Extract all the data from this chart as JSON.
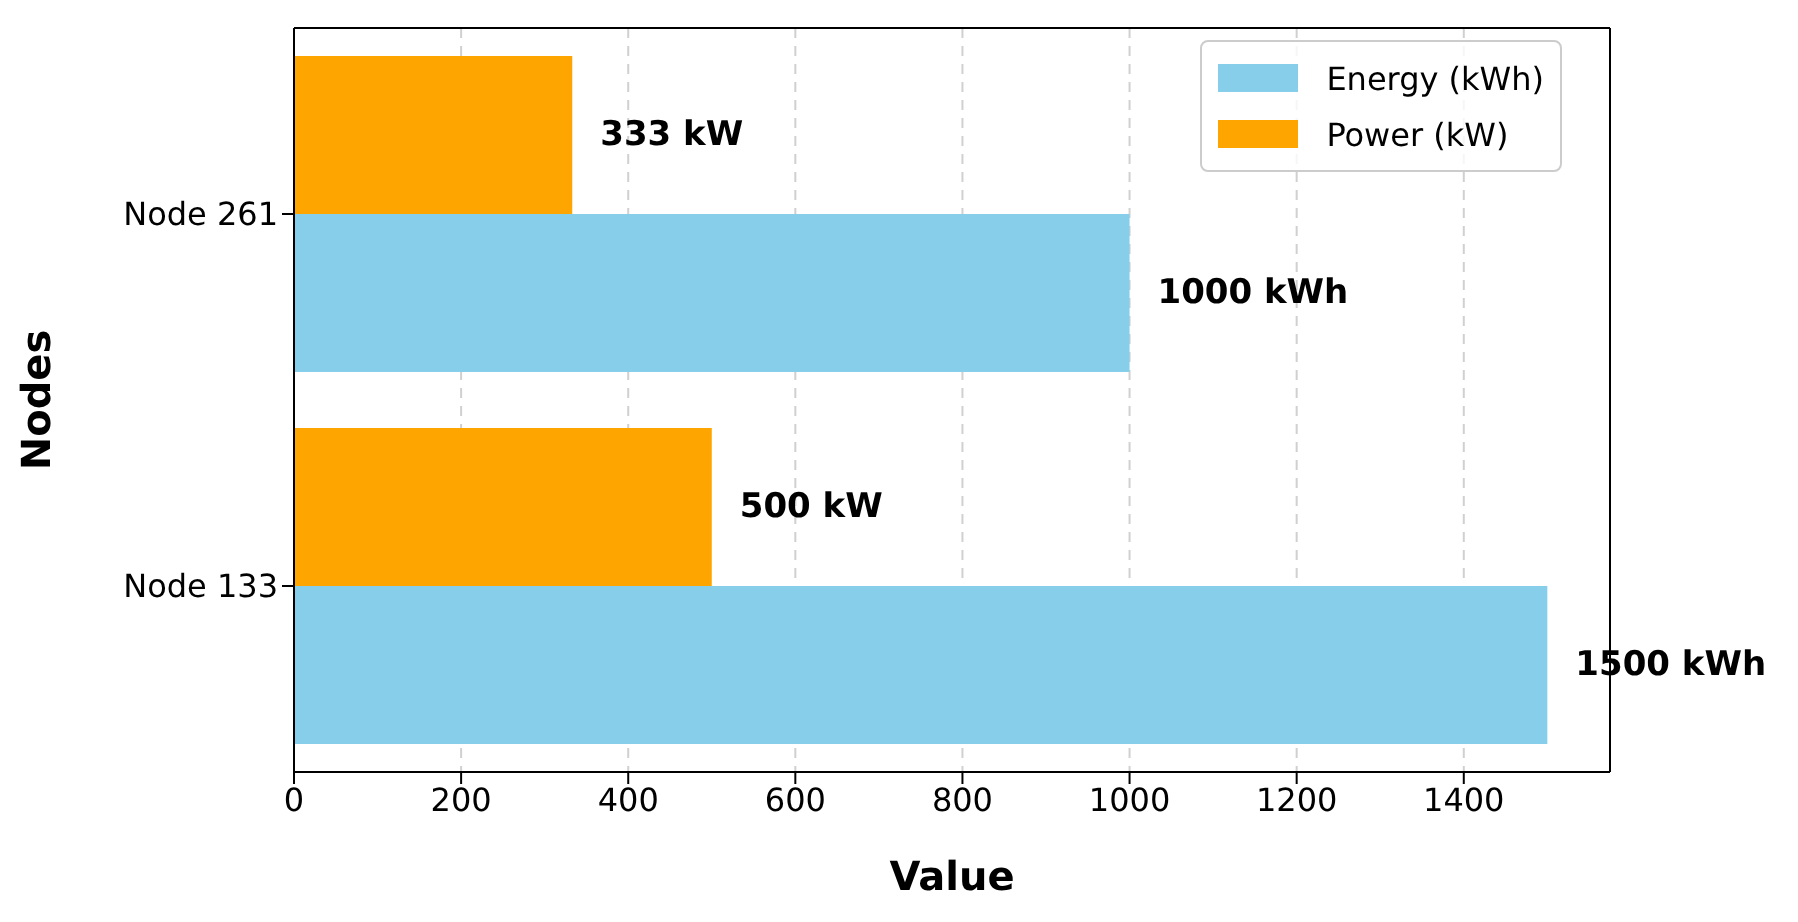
{
  "chart_data": {
    "type": "bar",
    "orientation": "horizontal",
    "xlabel": "Value",
    "ylabel": "Nodes",
    "categories": [
      "Node 261",
      "Node 133"
    ],
    "series": [
      {
        "name": "Energy (kWh)",
        "color": "#87ceeb",
        "values": [
          1000,
          1500
        ],
        "value_labels": [
          "1000 kWh",
          "1500 kWh"
        ]
      },
      {
        "name": "Power (kW)",
        "color": "#ffa500",
        "values": [
          333,
          500
        ],
        "value_labels": [
          "333 kW",
          "500 kW"
        ]
      }
    ],
    "xlim": [
      0,
      1575
    ],
    "xticks": [
      0,
      200,
      400,
      600,
      800,
      1000,
      1200,
      1400
    ],
    "grid": "x",
    "legend": "top right"
  }
}
